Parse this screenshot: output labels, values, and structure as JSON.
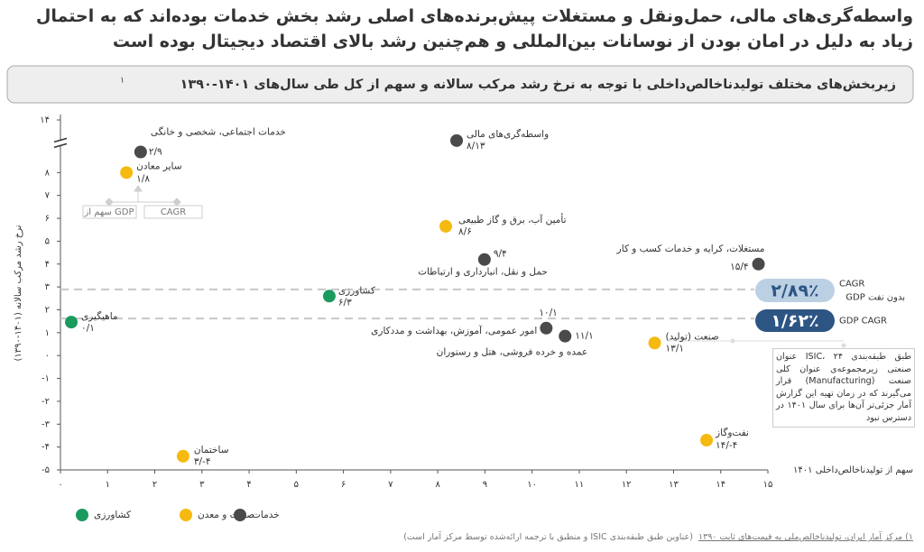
{
  "heading": "واسطه‌گری‌های مالی، حمل‌ونقل و مستغلات پیش‌برنده‌های اصلی رشد بخش خدمات بوده‌اند که به احتمال زیاد به دلیل در امان بودن از نوسانات بین‌المللی و هم‌چنین رشد بالای اقتصاد دیجیتال بوده است",
  "chart_data": {
    "type": "scatter",
    "title": "زیربخش‌های مختلف تولیدناخالص‌داخلی با توجه به نرخ رشد مرکب سالانه و سهم از کل طی سال‌های ۱۴۰۱-۱۳۹۰",
    "title_note": "۱",
    "x_label": "سهم از تولیدناخالص‌داخلی ۱۴۰۱",
    "y_label": "نرخ رشد مرکب سالانه (۱۴۰۱-۱۳۹۰)",
    "xlim": [
      0,
      15
    ],
    "ylim": [
      -5,
      14
    ],
    "y_break": [
      9.3,
      13
    ],
    "xticks": [
      {
        "value": 0,
        "label": "۰"
      },
      {
        "value": 1,
        "label": "۱"
      },
      {
        "value": 2,
        "label": "۲"
      },
      {
        "value": 3,
        "label": "۳"
      },
      {
        "value": 4,
        "label": "۴"
      },
      {
        "value": 5,
        "label": "۵"
      },
      {
        "value": 6,
        "label": "۶"
      },
      {
        "value": 7,
        "label": "۷"
      },
      {
        "value": 8,
        "label": "۸"
      },
      {
        "value": 9,
        "label": "۹"
      },
      {
        "value": 10,
        "label": "۱۰"
      },
      {
        "value": 11,
        "label": "۱۱"
      },
      {
        "value": 12,
        "label": "۱۲"
      },
      {
        "value": 13,
        "label": "۱۳"
      },
      {
        "value": 14,
        "label": "۱۴"
      },
      {
        "value": 15,
        "label": "۱۵"
      }
    ],
    "yticks": [
      {
        "value": -5,
        "label": "-۵"
      },
      {
        "value": -4,
        "label": "-۴"
      },
      {
        "value": -3,
        "label": "-۳"
      },
      {
        "value": -2,
        "label": "-۲"
      },
      {
        "value": -1,
        "label": "-۱"
      },
      {
        "value": 0,
        "label": "۰"
      },
      {
        "value": 1,
        "label": "۱"
      },
      {
        "value": 2,
        "label": "۲"
      },
      {
        "value": 3,
        "label": "۳"
      },
      {
        "value": 4,
        "label": "۴"
      },
      {
        "value": 5,
        "label": "۵"
      },
      {
        "value": 6,
        "label": "۶"
      },
      {
        "value": 7,
        "label": "۷"
      },
      {
        "value": 8,
        "label": "۸"
      },
      {
        "value": 14,
        "label": "۱۴"
      }
    ],
    "series": [
      {
        "name": "کشاورزی",
        "color": "#1b9a5e",
        "point_names": [
          "کشاورزی",
          "ماهیگیری"
        ],
        "x": [
          5.7,
          0.23
        ],
        "values": [
          2.6,
          1.46
        ],
        "value_labels": [
          "۶/۳",
          "۰/۱"
        ]
      },
      {
        "name": "صنعت و معدن",
        "color": "#f6b90f",
        "point_names": [
          "سایر معادن",
          "تأمین آب، برق و گاز طبیعی",
          "صنعت (تولید)",
          "ساختمان",
          "نفت‌وگاز"
        ],
        "x": [
          1.4,
          8.17,
          12.6,
          2.6,
          13.7
        ],
        "values": [
          8.0,
          5.65,
          0.55,
          -4.4,
          -3.7
        ],
        "value_labels": [
          "۱/۸",
          "۸/۶",
          "۱۳/۱",
          "۳/-۴",
          "۱۴/-۴"
        ]
      },
      {
        "name": "خدمات",
        "color": "#4a4a4a",
        "point_names": [
          "واسطه‌گری‌های مالی",
          "خدمات اجتماعی، شخصی و خانگی",
          "حمل و نقل، انبارداری و ارتباطات",
          "مستغلات، کرایه و خدمات کسب و کار",
          "امور عمومی، آموزش، بهداشت و مددکاری",
          "عمده و خرده فروشی، هتل و رستوران"
        ],
        "x": [
          8.4,
          1.7,
          8.99,
          14.8,
          10.3,
          10.7
        ],
        "values": [
          13.1,
          8.9,
          4.2,
          4.0,
          1.2,
          0.85
        ],
        "value_labels": [
          "۸/۱۳",
          "۲/۹",
          "۹/۴",
          "۱۵/۴",
          "۱۰/۱",
          "۱۱/۱"
        ]
      }
    ],
    "reference_lines": [
      {
        "value": 2.89,
        "label": "۲/۸۹٪",
        "name_lines": [
          "CAGR",
          "GDP بدون نفت"
        ],
        "color": "#bcd0e4"
      },
      {
        "value": 1.62,
        "label": "۱/۶۲٪",
        "name_lines": [
          "GDP CAGR"
        ],
        "color": "#2d5584"
      }
    ],
    "key_example": {
      "share_label": "سهم از GDP",
      "cagr_label": "CAGR"
    },
    "annotation": "طبق طبقه‌بندی ISIC، ۲۴ عنوان صنعتی زیرمجموعه‌ی عنوان کلی صنعت (Manufacturing) قرار می‌گیرند که در زمان تهیه این گزارش آمار جزئی‌تر آن‌ها برای سال ۱۴۰۱ در دسترس نبود"
  },
  "footnote": {
    "source": "۱) مرکز آمار ایران، تولیدناخالص‌ملی به قیمت‌های ثابت ۱۳۹۰",
    "note": "(عناوین طبق طبقه‌بندی ISIC و منطبق با ترجمه ارائه‌شده توسط مرکز آمار است)"
  }
}
